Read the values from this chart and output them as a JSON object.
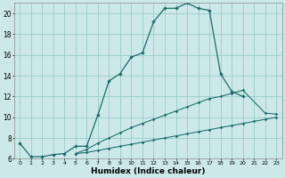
{
  "xlabel": "Humidex (Indice chaleur)",
  "background_color": "#cce8e8",
  "grid_color": "#99cccc",
  "line_color": "#1a6b6b",
  "xlim": [
    -0.5,
    23.5
  ],
  "ylim": [
    6,
    21
  ],
  "yticks": [
    6,
    8,
    10,
    12,
    14,
    16,
    18,
    20
  ],
  "xticks": [
    0,
    1,
    2,
    3,
    4,
    5,
    6,
    7,
    8,
    9,
    10,
    11,
    12,
    13,
    14,
    15,
    16,
    17,
    18,
    19,
    20,
    21,
    22,
    23
  ],
  "line1_x": [
    0,
    1,
    2,
    3,
    4,
    5,
    6,
    7,
    8,
    9,
    10,
    11,
    12,
    13,
    14,
    15,
    16,
    17,
    18,
    19,
    20
  ],
  "line1_y": [
    7.5,
    6.2,
    6.2,
    6.4,
    6.5,
    7.2,
    7.2,
    10.2,
    13.5,
    14.2,
    15.8,
    16.2,
    19.2,
    20.5,
    20.5,
    21.0,
    20.5,
    20.3,
    14.2,
    12.5,
    12.0
  ],
  "line2_x": [
    5,
    6,
    7,
    8,
    9,
    10,
    11,
    12,
    13,
    14,
    15,
    16,
    17,
    18,
    19,
    20,
    22,
    23
  ],
  "line2_y": [
    6.5,
    6.9,
    7.5,
    8.0,
    8.5,
    9.0,
    9.4,
    9.8,
    10.2,
    10.6,
    11.0,
    11.4,
    11.8,
    12.0,
    12.3,
    12.6,
    10.4,
    10.3
  ],
  "line3_x": [
    5,
    6,
    7,
    8,
    9,
    10,
    11,
    12,
    13,
    14,
    15,
    16,
    17,
    18,
    19,
    20,
    21,
    22,
    23
  ],
  "line3_y": [
    6.5,
    6.6,
    6.8,
    7.0,
    7.2,
    7.4,
    7.6,
    7.8,
    8.0,
    8.2,
    8.4,
    8.6,
    8.8,
    9.0,
    9.2,
    9.4,
    9.6,
    9.8,
    10.0
  ]
}
